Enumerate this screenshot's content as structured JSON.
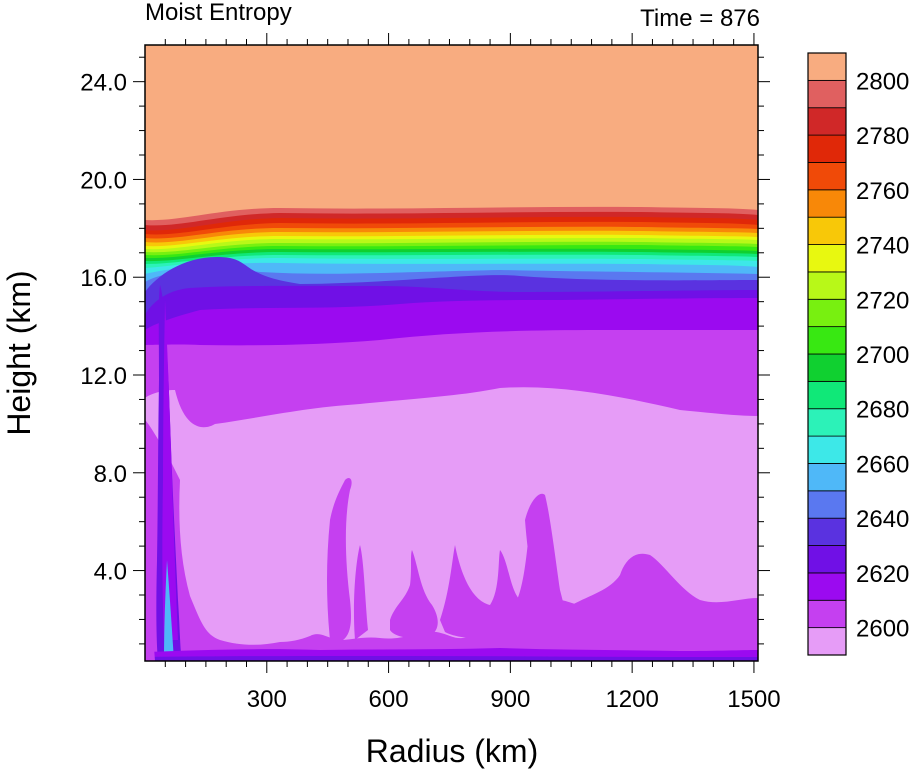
{
  "chart_data": {
    "type": "heatmap",
    "title_left": "Moist Entropy",
    "title_right": "Time = 876",
    "xlabel": "Radius (km)",
    "ylabel": "Height (km)",
    "xlim": [
      0,
      1510
    ],
    "ylim": [
      0.3,
      25.5
    ],
    "x_ticks": [
      300,
      600,
      900,
      1200,
      1500
    ],
    "x_tick_labels": [
      "300",
      "600",
      "900",
      "1200",
      "1500"
    ],
    "y_ticks": [
      4,
      8,
      12,
      16,
      20,
      24
    ],
    "y_tick_labels": [
      "4.0",
      "8.0",
      "12.0",
      "16.0",
      "20.0",
      "24.0"
    ],
    "colorbar": {
      "levels": [
        2600,
        2610,
        2620,
        2630,
        2640,
        2650,
        2660,
        2670,
        2680,
        2690,
        2700,
        2710,
        2720,
        2730,
        2740,
        2750,
        2760,
        2770,
        2780,
        2790,
        2800
      ],
      "colors": [
        "#e69cf7",
        "#c540f0",
        "#9b0af0",
        "#7010e6",
        "#5a32e0",
        "#5a78f0",
        "#4fb8f8",
        "#3de8e8",
        "#2cf2b8",
        "#10e878",
        "#10d030",
        "#38e812",
        "#78f010",
        "#b8f818",
        "#e8f810",
        "#f8c808",
        "#f88808",
        "#f04a08",
        "#e02808",
        "#d02828",
        "#e06060",
        "#f8ac80"
      ],
      "labels": [
        "2600",
        "2620",
        "2640",
        "2660",
        "2680",
        "2700",
        "2720",
        "2740",
        "2760",
        "2780",
        "2800"
      ]
    }
  }
}
